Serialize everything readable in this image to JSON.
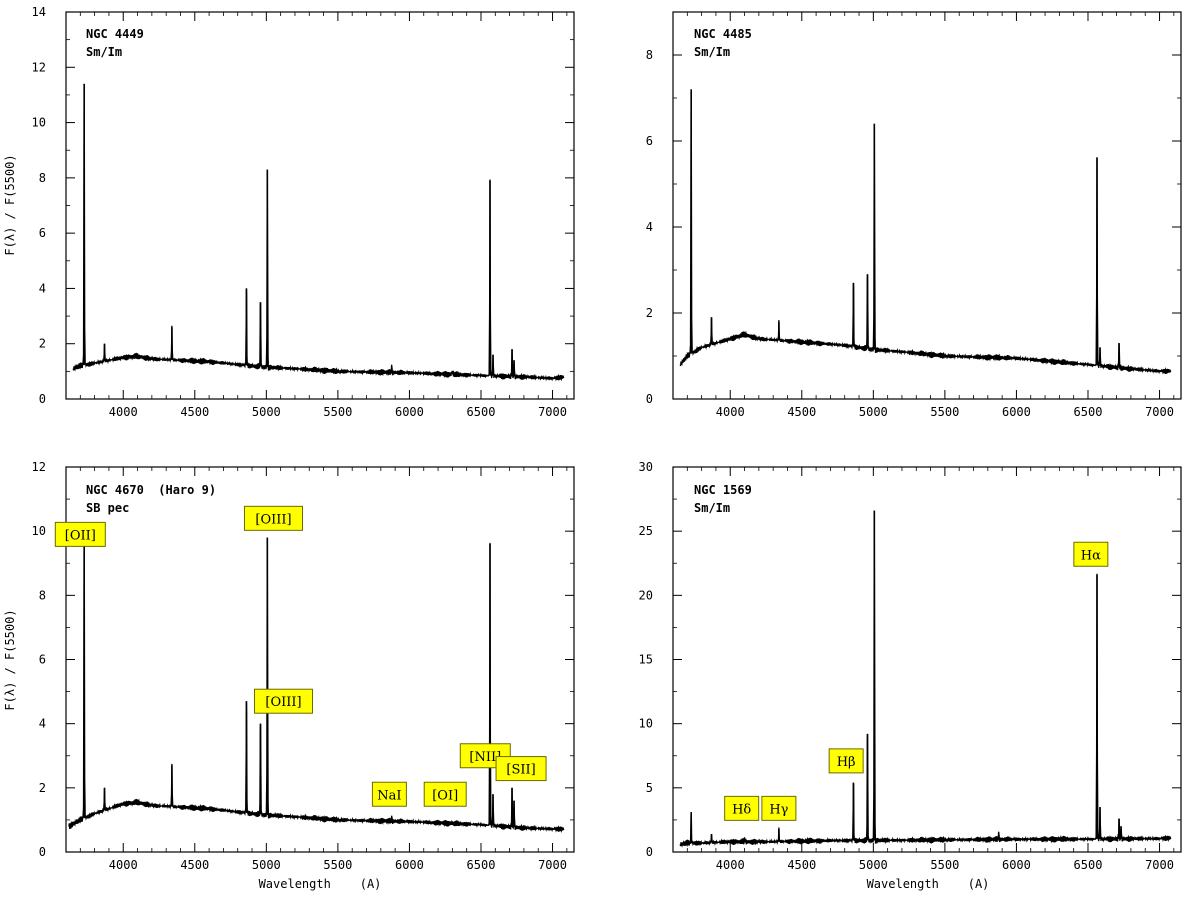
{
  "chart_data": [
    {
      "type": "line",
      "title": "NGC 4449",
      "subtitle": "Sm/Im",
      "xlabel": "",
      "ylabel": "F(λ) / F(5500)",
      "xlim": [
        3600,
        7150
      ],
      "ylim": [
        0,
        14
      ],
      "xticks": [
        4000,
        4500,
        5000,
        5500,
        6000,
        6500,
        7000
      ],
      "yticks": [
        0,
        2,
        4,
        6,
        8,
        10,
        12,
        14
      ],
      "continuum": [
        [
          3650,
          1.1
        ],
        [
          3700,
          1.2
        ],
        [
          3800,
          1.3
        ],
        [
          3900,
          1.4
        ],
        [
          4000,
          1.5
        ],
        [
          4100,
          1.55
        ],
        [
          4200,
          1.45
        ],
        [
          4400,
          1.4
        ],
        [
          4600,
          1.35
        ],
        [
          4800,
          1.25
        ],
        [
          5000,
          1.15
        ],
        [
          5200,
          1.1
        ],
        [
          5500,
          1.0
        ],
        [
          6000,
          0.95
        ],
        [
          6500,
          0.85
        ],
        [
          6800,
          0.8
        ],
        [
          7000,
          0.75
        ],
        [
          7080,
          0.8
        ]
      ],
      "lines": [
        [
          3727,
          11.4
        ],
        [
          3869,
          2.0
        ],
        [
          4340,
          2.6
        ],
        [
          4861,
          4.0
        ],
        [
          4959,
          3.5
        ],
        [
          5007,
          8.3
        ],
        [
          5876,
          1.2
        ],
        [
          6300,
          1.0
        ],
        [
          6563,
          7.9
        ],
        [
          6584,
          1.6
        ],
        [
          6717,
          1.8
        ],
        [
          6731,
          1.4
        ]
      ],
      "annotations": []
    },
    {
      "type": "line",
      "title": "NGC 4485",
      "subtitle": "Sm/Im",
      "xlabel": "",
      "ylabel": "",
      "xlim": [
        3600,
        7150
      ],
      "ylim": [
        0,
        9
      ],
      "xticks": [
        4000,
        4500,
        5000,
        5500,
        6000,
        6500,
        7000
      ],
      "yticks": [
        0,
        2,
        4,
        6,
        8
      ],
      "continuum": [
        [
          3650,
          0.8
        ],
        [
          3700,
          1.0
        ],
        [
          3800,
          1.2
        ],
        [
          3900,
          1.3
        ],
        [
          4000,
          1.4
        ],
        [
          4100,
          1.5
        ],
        [
          4200,
          1.4
        ],
        [
          4400,
          1.35
        ],
        [
          4600,
          1.3
        ],
        [
          4800,
          1.25
        ],
        [
          5000,
          1.15
        ],
        [
          5200,
          1.1
        ],
        [
          5500,
          1.0
        ],
        [
          6000,
          0.95
        ],
        [
          6500,
          0.8
        ],
        [
          6800,
          0.7
        ],
        [
          7000,
          0.65
        ],
        [
          7080,
          0.65
        ]
      ],
      "lines": [
        [
          3727,
          7.2
        ],
        [
          3869,
          1.9
        ],
        [
          4340,
          1.8
        ],
        [
          4861,
          2.7
        ],
        [
          4959,
          2.9
        ],
        [
          5007,
          6.4
        ],
        [
          5876,
          1.0
        ],
        [
          6563,
          5.6
        ],
        [
          6584,
          1.2
        ],
        [
          6717,
          1.3
        ]
      ],
      "annotations": []
    },
    {
      "type": "line",
      "title": "NGC 4670  (Haro 9)",
      "subtitle": "SB pec",
      "xlabel": "Wavelength    (A)",
      "ylabel": "F(λ) / F(5500)",
      "xlim": [
        3600,
        7150
      ],
      "ylim": [
        0,
        12
      ],
      "xticks": [
        4000,
        4500,
        5000,
        5500,
        6000,
        6500,
        7000
      ],
      "yticks": [
        0,
        2,
        4,
        6,
        8,
        10,
        12
      ],
      "continuum": [
        [
          3620,
          0.8
        ],
        [
          3700,
          1.0
        ],
        [
          3800,
          1.2
        ],
        [
          3900,
          1.35
        ],
        [
          4000,
          1.5
        ],
        [
          4100,
          1.55
        ],
        [
          4200,
          1.45
        ],
        [
          4400,
          1.4
        ],
        [
          4600,
          1.35
        ],
        [
          4800,
          1.25
        ],
        [
          5000,
          1.15
        ],
        [
          5200,
          1.1
        ],
        [
          5500,
          1.0
        ],
        [
          6000,
          0.95
        ],
        [
          6500,
          0.85
        ],
        [
          6800,
          0.75
        ],
        [
          7000,
          0.72
        ],
        [
          7080,
          0.72
        ]
      ],
      "lines": [
        [
          3727,
          10.2
        ],
        [
          3869,
          2.0
        ],
        [
          4340,
          2.7
        ],
        [
          4861,
          4.7
        ],
        [
          4959,
          4.0
        ],
        [
          5007,
          9.8
        ],
        [
          5876,
          1.1
        ],
        [
          6300,
          0.9
        ],
        [
          6563,
          9.6
        ],
        [
          6584,
          1.8
        ],
        [
          6717,
          2.0
        ],
        [
          6731,
          1.6
        ]
      ],
      "annotations": [
        {
          "text": "[OII]",
          "x": 3700,
          "y": 9.9
        },
        {
          "text": "[OIII]",
          "x": 5050,
          "y": 10.4
        },
        {
          "text": "[OIII]",
          "x": 5120,
          "y": 4.7
        },
        {
          "text": "NaI",
          "x": 5860,
          "y": 1.8
        },
        {
          "text": "[OI]",
          "x": 6250,
          "y": 1.8
        },
        {
          "text": "[NII]",
          "x": 6530,
          "y": 3.0
        },
        {
          "text": "[SII]",
          "x": 6780,
          "y": 2.6
        }
      ]
    },
    {
      "type": "line",
      "title": "NGC 1569",
      "subtitle": "Sm/Im",
      "xlabel": "Wavelength    (A)",
      "ylabel": "",
      "xlim": [
        3600,
        7150
      ],
      "ylim": [
        0,
        30
      ],
      "xticks": [
        4000,
        4500,
        5000,
        5500,
        6000,
        6500,
        7000
      ],
      "yticks": [
        0,
        5,
        10,
        15,
        20,
        25,
        30
      ],
      "continuum": [
        [
          3650,
          0.6
        ],
        [
          3700,
          0.7
        ],
        [
          3800,
          0.7
        ],
        [
          4000,
          0.8
        ],
        [
          4300,
          0.8
        ],
        [
          4500,
          0.85
        ],
        [
          4800,
          0.9
        ],
        [
          5000,
          0.9
        ],
        [
          5500,
          0.95
        ],
        [
          6000,
          1.0
        ],
        [
          6500,
          1.0
        ],
        [
          7000,
          1.05
        ],
        [
          7080,
          1.1
        ]
      ],
      "lines": [
        [
          3727,
          3.1
        ],
        [
          3869,
          1.4
        ],
        [
          4102,
          1.0
        ],
        [
          4340,
          1.8
        ],
        [
          4861,
          5.4
        ],
        [
          4959,
          9.2
        ],
        [
          5007,
          26.6
        ],
        [
          5876,
          1.5
        ],
        [
          6563,
          21.6
        ],
        [
          6584,
          3.5
        ],
        [
          6717,
          2.6
        ],
        [
          6731,
          2.0
        ]
      ],
      "annotations": [
        {
          "text": "Hδ",
          "x": 4080,
          "y": 3.4
        },
        {
          "text": "Hγ",
          "x": 4340,
          "y": 3.4
        },
        {
          "text": "Hβ",
          "x": 4810,
          "y": 7.1
        },
        {
          "text": "Hα",
          "x": 6520,
          "y": 23.2
        }
      ]
    }
  ]
}
